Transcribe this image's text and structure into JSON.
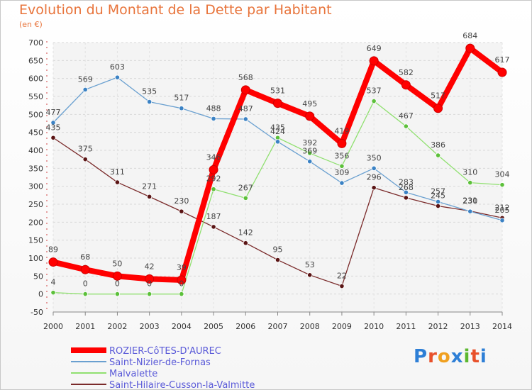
{
  "chart_data": {
    "type": "line",
    "title": "Evolution du Montant de la Dette par Habitant",
    "subtitle": "(en €)",
    "x": [
      "2000",
      "2001",
      "2002",
      "2003",
      "2004",
      "2005",
      "2006",
      "2007",
      "2008",
      "2009",
      "2010",
      "2011",
      "2012",
      "2013",
      "2014"
    ],
    "ylim": [
      -50,
      700
    ],
    "yticks": [
      -50,
      0,
      50,
      100,
      150,
      200,
      250,
      300,
      350,
      400,
      450,
      500,
      550,
      600,
      650,
      700
    ],
    "grid": "horizontal-dashed",
    "legend_position": "bottom-left",
    "series": [
      {
        "name": "ROZIER-CôTES-D'AUREC",
        "color": "#ff0000",
        "values": [
          89,
          68,
          50,
          42,
          39,
          346,
          568,
          531,
          495,
          419,
          649,
          582,
          517,
          684,
          617
        ]
      },
      {
        "name": "Saint-Nizier-de-Fornas",
        "color": "#6aa0d0",
        "marker": "#3b82c4",
        "values": [
          477,
          569,
          603,
          535,
          517,
          488,
          487,
          424,
          369,
          309,
          350,
          283,
          257,
          230,
          205
        ]
      },
      {
        "name": "Malvalette",
        "color": "#90e070",
        "marker": "#5cc03a",
        "values": [
          4,
          0,
          0,
          0,
          0,
          292,
          267,
          435,
          392,
          356,
          537,
          467,
          386,
          310,
          304
        ]
      },
      {
        "name": "Saint-Hilaire-Cusson-la-Valmitte",
        "color": "#7a2a2a",
        "marker": "#5a1414",
        "values": [
          435,
          375,
          311,
          271,
          230,
          187,
          142,
          95,
          53,
          22,
          296,
          268,
          245,
          231,
          212
        ]
      }
    ]
  },
  "logo": {
    "letters": [
      "P",
      "r",
      "o",
      "x",
      "i",
      "t",
      "i"
    ],
    "colors": [
      "#2e7fd6",
      "#e8502a",
      "#f0a020",
      "#2e7fd6",
      "#5cb830",
      "#e8502a",
      "#2e7fd6"
    ]
  }
}
